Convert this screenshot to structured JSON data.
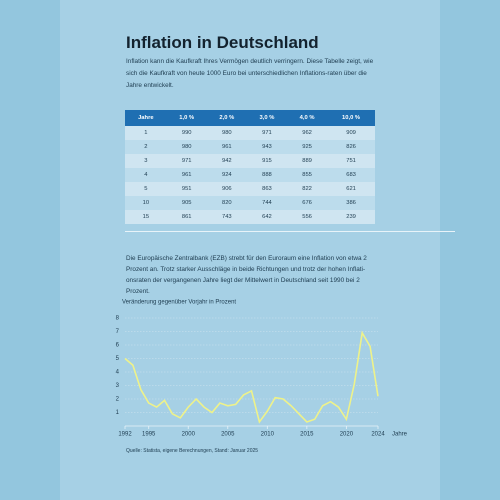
{
  "header": {
    "title": "Inflation in Deutschland",
    "intro": "Inflation kann die Kaufkraft Ihres Vermögen deutlich verringern. Diese Tabelle zeigt, wie sich die Kaufkraft von heute 1000 Euro bei unterschiedlichen Inflations-raten über die Jahre entwickelt."
  },
  "table": {
    "header": [
      "Jahre",
      "1,0 %",
      "2,0 %",
      "3,0 %",
      "4,0 %",
      "10,0 %"
    ],
    "rows": [
      [
        1,
        990,
        980,
        971,
        962,
        909
      ],
      [
        2,
        980,
        961,
        943,
        925,
        826
      ],
      [
        3,
        971,
        942,
        915,
        889,
        751
      ],
      [
        4,
        961,
        924,
        888,
        855,
        683
      ],
      [
        5,
        951,
        906,
        863,
        822,
        621
      ],
      [
        10,
        905,
        820,
        744,
        676,
        386
      ],
      [
        15,
        861,
        743,
        642,
        556,
        239
      ]
    ]
  },
  "body": "Die Europäische Zentralbank (EZB) strebt für den Euroraum eine Inflation von etwa 2 Prozent an. Trotz starker Ausschläge in beide Richtungen und trotz der hohen Inflati-onsraten der vergangenen Jahre liegt der Mittelwert in Deutschland seit 1990 bei 2 Prozent.",
  "chart_data": {
    "type": "line",
    "subtitle": "Veränderung gegenüber Vorjahr in Prozent",
    "x_label": "Jahre",
    "x": [
      1992,
      1993,
      1994,
      1995,
      1996,
      1997,
      1998,
      1999,
      2000,
      2001,
      2002,
      2003,
      2004,
      2005,
      2006,
      2007,
      2008,
      2009,
      2010,
      2011,
      2012,
      2013,
      2014,
      2015,
      2016,
      2017,
      2018,
      2019,
      2020,
      2021,
      2022,
      2023,
      2024
    ],
    "series": [
      {
        "color": "#eef28a",
        "values": [
          5.0,
          4.5,
          2.7,
          1.7,
          1.4,
          1.9,
          0.9,
          0.6,
          1.4,
          2.0,
          1.4,
          1.0,
          1.7,
          1.5,
          1.6,
          2.3,
          2.6,
          0.3,
          1.1,
          2.1,
          2.0,
          1.5,
          0.9,
          0.3,
          0.5,
          1.5,
          1.8,
          1.4,
          0.5,
          3.1,
          6.9,
          5.9,
          2.2
        ]
      }
    ],
    "xlim": [
      1992,
      2024
    ],
    "xticks": [
      1992,
      1995,
      2000,
      2005,
      2010,
      2015,
      2020,
      2024
    ],
    "ylim": [
      0,
      8
    ],
    "yticks": [
      1,
      2,
      3,
      4,
      5,
      6,
      7,
      8
    ],
    "grid": true
  },
  "source": "Quelle: Statista, eigene Berechnungen, Stand: Januar 2025"
}
